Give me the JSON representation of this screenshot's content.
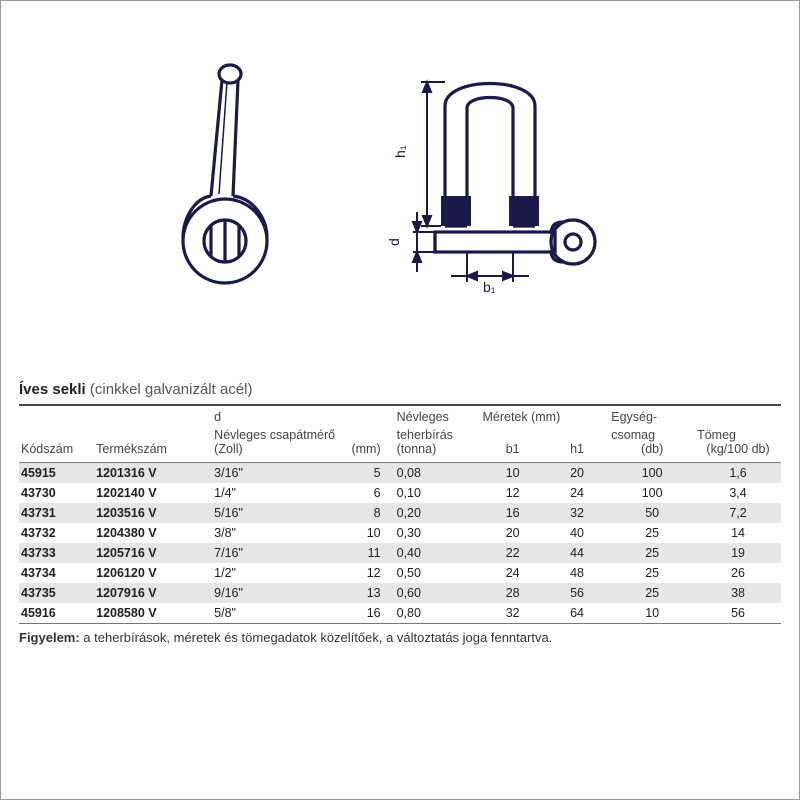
{
  "title": {
    "main": "Íves sekli",
    "sub": "(cinkkel galvanizált acél)"
  },
  "headers": {
    "kod": "Kódszám",
    "term": "Termékszám",
    "d_top": "d",
    "d_line": "Névleges csapátmérő",
    "zoll": "(Zoll)",
    "mm": "(mm)",
    "teh_top": "Névleges",
    "teh_line": "teherbírás",
    "teh_unit": "(tonna)",
    "meretek": "Méretek (mm)",
    "b1": "b1",
    "h1": "h1",
    "egyseg_top": "Egység-",
    "egyseg_line": "csomag",
    "db": "(db)",
    "tomeg_top": "Tömeg",
    "tomeg_unit": "(kg/100 db)"
  },
  "rows": [
    {
      "kod": "45915",
      "term": "1201316 V",
      "zoll": "3/16\"",
      "mm": "5",
      "teh": "0,08",
      "b1": "10",
      "h1": "20",
      "db": "100",
      "tom": "1,6"
    },
    {
      "kod": "43730",
      "term": "1202140 V",
      "zoll": "1/4\"",
      "mm": "6",
      "teh": "0,10",
      "b1": "12",
      "h1": "24",
      "db": "100",
      "tom": "3,4"
    },
    {
      "kod": "43731",
      "term": "1203516 V",
      "zoll": "5/16\"",
      "mm": "8",
      "teh": "0,20",
      "b1": "16",
      "h1": "32",
      "db": "50",
      "tom": "7,2"
    },
    {
      "kod": "43732",
      "term": "1204380 V",
      "zoll": "3/8\"",
      "mm": "10",
      "teh": "0,30",
      "b1": "20",
      "h1": "40",
      "db": "25",
      "tom": "14"
    },
    {
      "kod": "43733",
      "term": "1205716 V",
      "zoll": "7/16\"",
      "mm": "11",
      "teh": "0,40",
      "b1": "22",
      "h1": "44",
      "db": "25",
      "tom": "19"
    },
    {
      "kod": "43734",
      "term": "1206120 V",
      "zoll": "1/2\"",
      "mm": "12",
      "teh": "0,50",
      "b1": "24",
      "h1": "48",
      "db": "25",
      "tom": "26"
    },
    {
      "kod": "43735",
      "term": "1207916 V",
      "zoll": "9/16\"",
      "mm": "13",
      "teh": "0,60",
      "b1": "28",
      "h1": "56",
      "db": "25",
      "tom": "38"
    },
    {
      "kod": "45916",
      "term": "1208580 V",
      "zoll": "5/8\"",
      "mm": "16",
      "teh": "0,80",
      "b1": "32",
      "h1": "64",
      "db": "10",
      "tom": "56"
    }
  ],
  "note": {
    "label": "Figyelem:",
    "text": " a teherbírások, méretek és tömegadatok közelítőek, a változtatás joga fenntartva."
  },
  "style": {
    "band_bg": "#e6e6e6",
    "stroke": "#1a1a4a",
    "dim_labels": {
      "h1": "h₁",
      "d": "d",
      "b1": "b₁"
    }
  }
}
